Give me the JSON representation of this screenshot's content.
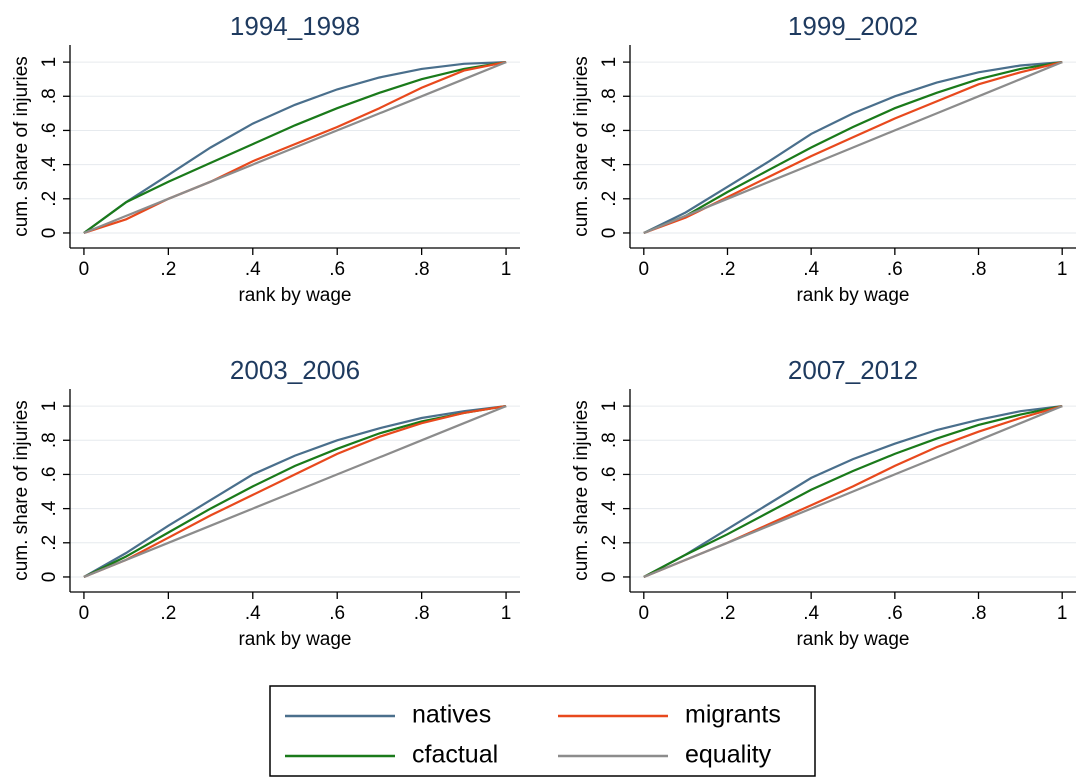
{
  "chart_data": [
    {
      "type": "line",
      "title": "1994_1998",
      "xlabel": "rank by wage",
      "ylabel": "cum. share of injuries",
      "x": [
        0,
        0.1,
        0.2,
        0.3,
        0.4,
        0.5,
        0.6,
        0.7,
        0.8,
        0.9,
        1
      ],
      "series": [
        {
          "name": "natives",
          "color": "#4a6f8c",
          "values": [
            0,
            0.18,
            0.34,
            0.5,
            0.64,
            0.75,
            0.84,
            0.91,
            0.96,
            0.99,
            1
          ]
        },
        {
          "name": "cfactual",
          "color": "#1a7a1a",
          "values": [
            0,
            0.18,
            0.3,
            0.41,
            0.52,
            0.63,
            0.73,
            0.82,
            0.9,
            0.96,
            1
          ]
        },
        {
          "name": "migrants",
          "color": "#e8491d",
          "values": [
            0,
            0.08,
            0.2,
            0.3,
            0.42,
            0.52,
            0.62,
            0.73,
            0.85,
            0.95,
            1
          ]
        },
        {
          "name": "equality",
          "color": "#8c8c8c",
          "values": [
            0,
            0.1,
            0.2,
            0.3,
            0.4,
            0.5,
            0.6,
            0.7,
            0.8,
            0.9,
            1
          ]
        }
      ],
      "xlim": [
        -0.033,
        1.033
      ],
      "ylim": [
        -0.088,
        1.1
      ],
      "xticks": [
        0,
        {
          "value": 0.2,
          "label": ".2"
        },
        {
          "value": 0.4,
          "label": ".4"
        },
        {
          "value": 0.6,
          "label": ".6"
        },
        {
          "value": 0.8,
          "label": ".8"
        },
        1
      ],
      "yticks": [
        0,
        {
          "value": 0.2,
          "label": ".2"
        },
        {
          "value": 0.4,
          "label": ".4"
        },
        {
          "value": 0.6,
          "label": ".6"
        },
        {
          "value": 0.8,
          "label": ".8"
        },
        1
      ],
      "grid": true
    },
    {
      "type": "line",
      "title": "1999_2002",
      "xlabel": "rank by wage",
      "ylabel": "cum. share of injuries",
      "x": [
        0,
        0.1,
        0.2,
        0.3,
        0.4,
        0.5,
        0.6,
        0.7,
        0.8,
        0.9,
        1
      ],
      "series": [
        {
          "name": "natives",
          "color": "#4a6f8c",
          "values": [
            0,
            0.12,
            0.27,
            0.42,
            0.58,
            0.7,
            0.8,
            0.88,
            0.94,
            0.98,
            1
          ]
        },
        {
          "name": "cfactual",
          "color": "#1a7a1a",
          "values": [
            0,
            0.1,
            0.24,
            0.37,
            0.5,
            0.62,
            0.73,
            0.82,
            0.9,
            0.96,
            1
          ]
        },
        {
          "name": "migrants",
          "color": "#e8491d",
          "values": [
            0,
            0.09,
            0.21,
            0.33,
            0.45,
            0.56,
            0.67,
            0.77,
            0.87,
            0.94,
            1
          ]
        },
        {
          "name": "equality",
          "color": "#8c8c8c",
          "values": [
            0,
            0.1,
            0.2,
            0.3,
            0.4,
            0.5,
            0.6,
            0.7,
            0.8,
            0.9,
            1
          ]
        }
      ],
      "xlim": [
        -0.033,
        1.033
      ],
      "ylim": [
        -0.088,
        1.1
      ],
      "xticks": [
        0,
        {
          "value": 0.2,
          "label": ".2"
        },
        {
          "value": 0.4,
          "label": ".4"
        },
        {
          "value": 0.6,
          "label": ".6"
        },
        {
          "value": 0.8,
          "label": ".8"
        },
        1
      ],
      "yticks": [
        0,
        {
          "value": 0.2,
          "label": ".2"
        },
        {
          "value": 0.4,
          "label": ".4"
        },
        {
          "value": 0.6,
          "label": ".6"
        },
        {
          "value": 0.8,
          "label": ".8"
        },
        1
      ],
      "grid": true
    },
    {
      "type": "line",
      "title": "2003_2006",
      "xlabel": "rank by wage",
      "ylabel": "cum. share of injuries",
      "x": [
        0,
        0.1,
        0.2,
        0.3,
        0.4,
        0.5,
        0.6,
        0.7,
        0.8,
        0.9,
        1
      ],
      "series": [
        {
          "name": "natives",
          "color": "#4a6f8c",
          "values": [
            0,
            0.14,
            0.3,
            0.45,
            0.6,
            0.71,
            0.8,
            0.87,
            0.93,
            0.97,
            1
          ]
        },
        {
          "name": "cfactual",
          "color": "#1a7a1a",
          "values": [
            0,
            0.12,
            0.26,
            0.4,
            0.53,
            0.65,
            0.75,
            0.84,
            0.91,
            0.96,
            1
          ]
        },
        {
          "name": "migrants",
          "color": "#e8491d",
          "values": [
            0,
            0.1,
            0.23,
            0.36,
            0.48,
            0.6,
            0.72,
            0.82,
            0.9,
            0.96,
            1
          ]
        },
        {
          "name": "equality",
          "color": "#8c8c8c",
          "values": [
            0,
            0.1,
            0.2,
            0.3,
            0.4,
            0.5,
            0.6,
            0.7,
            0.8,
            0.9,
            1
          ]
        }
      ],
      "xlim": [
        -0.033,
        1.033
      ],
      "ylim": [
        -0.088,
        1.1
      ],
      "xticks": [
        0,
        {
          "value": 0.2,
          "label": ".2"
        },
        {
          "value": 0.4,
          "label": ".4"
        },
        {
          "value": 0.6,
          "label": ".6"
        },
        {
          "value": 0.8,
          "label": ".8"
        },
        1
      ],
      "yticks": [
        0,
        {
          "value": 0.2,
          "label": ".2"
        },
        {
          "value": 0.4,
          "label": ".4"
        },
        {
          "value": 0.6,
          "label": ".6"
        },
        {
          "value": 0.8,
          "label": ".8"
        },
        1
      ],
      "grid": true
    },
    {
      "type": "line",
      "title": "2007_2012",
      "xlabel": "rank by wage",
      "ylabel": "cum. share of injuries",
      "x": [
        0,
        0.1,
        0.2,
        0.3,
        0.4,
        0.5,
        0.6,
        0.7,
        0.8,
        0.9,
        1
      ],
      "series": [
        {
          "name": "natives",
          "color": "#4a6f8c",
          "values": [
            0,
            0.13,
            0.28,
            0.43,
            0.58,
            0.69,
            0.78,
            0.86,
            0.92,
            0.97,
            1
          ]
        },
        {
          "name": "cfactual",
          "color": "#1a7a1a",
          "values": [
            0,
            0.13,
            0.25,
            0.38,
            0.51,
            0.62,
            0.72,
            0.81,
            0.89,
            0.95,
            1
          ]
        },
        {
          "name": "migrants",
          "color": "#e8491d",
          "values": [
            0,
            0.1,
            0.2,
            0.31,
            0.42,
            0.53,
            0.65,
            0.76,
            0.85,
            0.93,
            1
          ]
        },
        {
          "name": "equality",
          "color": "#8c8c8c",
          "values": [
            0,
            0.1,
            0.2,
            0.3,
            0.4,
            0.5,
            0.6,
            0.7,
            0.8,
            0.9,
            1
          ]
        }
      ],
      "xlim": [
        -0.033,
        1.033
      ],
      "ylim": [
        -0.088,
        1.1
      ],
      "xticks": [
        0,
        {
          "value": 0.2,
          "label": ".2"
        },
        {
          "value": 0.4,
          "label": ".4"
        },
        {
          "value": 0.6,
          "label": ".6"
        },
        {
          "value": 0.8,
          "label": ".8"
        },
        1
      ],
      "yticks": [
        0,
        {
          "value": 0.2,
          "label": ".2"
        },
        {
          "value": 0.4,
          "label": ".4"
        },
        {
          "value": 0.6,
          "label": ".6"
        },
        {
          "value": 0.8,
          "label": ".8"
        },
        1
      ],
      "grid": true
    }
  ]
}
